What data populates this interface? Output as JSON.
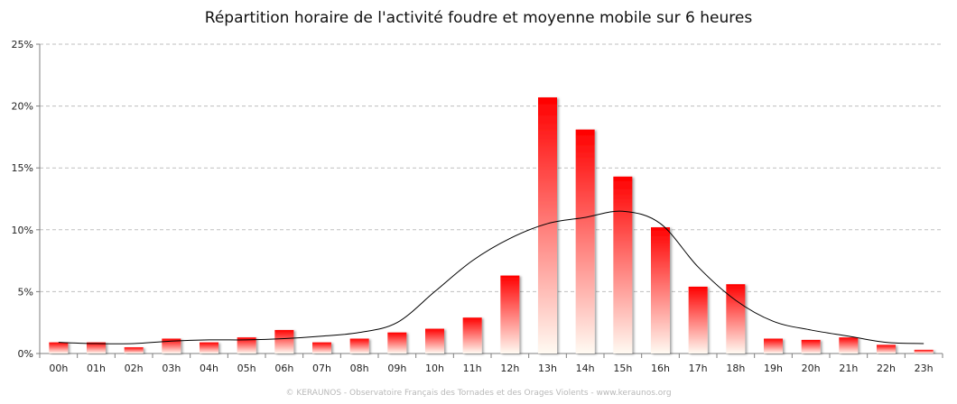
{
  "chart_data": {
    "type": "bar",
    "title": "Répartition horaire de l'activité foudre et moyenne mobile sur 6 heures",
    "categories": [
      "00h",
      "01h",
      "02h",
      "03h",
      "04h",
      "05h",
      "06h",
      "07h",
      "08h",
      "09h",
      "10h",
      "11h",
      "12h",
      "13h",
      "14h",
      "15h",
      "16h",
      "17h",
      "18h",
      "19h",
      "20h",
      "21h",
      "22h",
      "23h"
    ],
    "series": [
      {
        "type": "bar",
        "values": [
          0.9,
          0.9,
          0.5,
          1.2,
          0.9,
          1.3,
          1.9,
          0.9,
          1.2,
          1.7,
          2.0,
          2.9,
          6.3,
          20.7,
          18.1,
          14.3,
          10.2,
          5.4,
          5.6,
          1.2,
          1.1,
          1.3,
          0.7,
          0.3
        ]
      },
      {
        "type": "line",
        "values": [
          0.9,
          0.8,
          0.8,
          1.0,
          1.1,
          1.1,
          1.2,
          1.4,
          1.7,
          2.5,
          5.0,
          7.5,
          9.3,
          10.5,
          11.0,
          11.5,
          10.5,
          7.0,
          4.3,
          2.6,
          1.9,
          1.4,
          0.9,
          0.8
        ]
      }
    ],
    "ylim": [
      0,
      25
    ],
    "yticks": [
      "0%",
      "5%",
      "10%",
      "15%",
      "20%",
      "25%"
    ],
    "grid": true,
    "colors": {
      "bar_top": "#ff0000",
      "bar_bottom": "#fffaf2",
      "line": "#000000",
      "grid": "#bfbfbf"
    }
  },
  "footer": "© KERAUNOS - Observatoire Français des Tornades et des Orages Violents - www.keraunos.org"
}
